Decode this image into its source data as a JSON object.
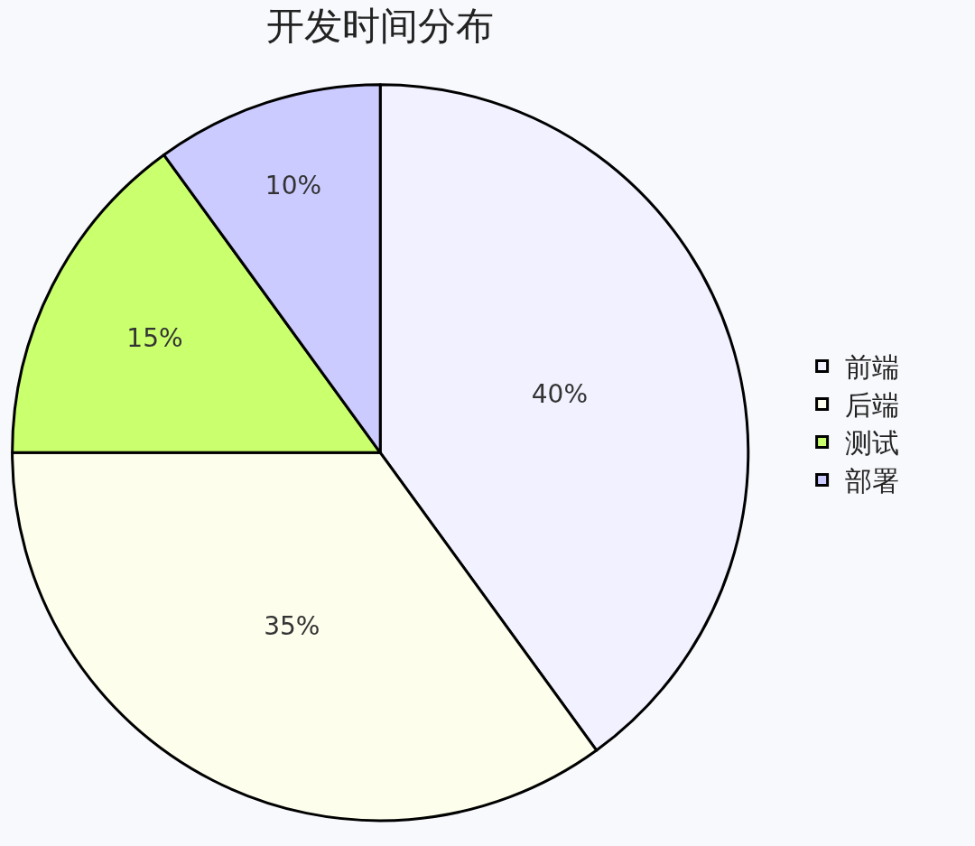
{
  "chart_data": {
    "type": "pie",
    "title": "开发时间分布",
    "categories": [
      "前端",
      "后端",
      "测试",
      "部署"
    ],
    "values": [
      40,
      35,
      15,
      10
    ],
    "colors": [
      "#f1f1ff",
      "#fdfeeb",
      "#caff6e",
      "#cbcbff"
    ],
    "value_labels": [
      "40%",
      "35%",
      "15%",
      "10%"
    ],
    "legend": "right"
  }
}
